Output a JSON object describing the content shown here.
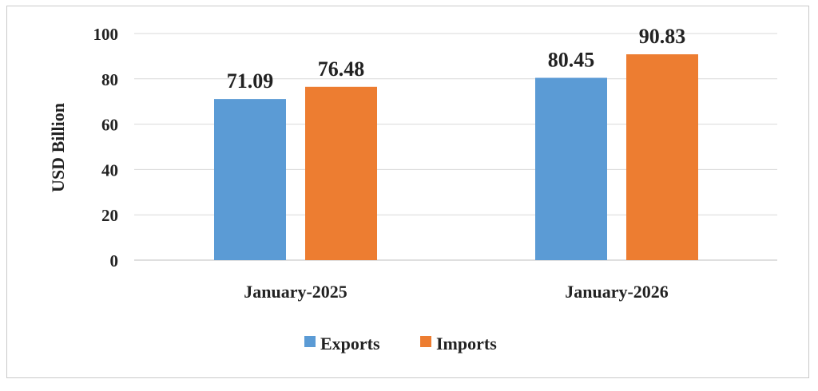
{
  "chart_data": {
    "type": "bar",
    "title": "",
    "xlabel": "",
    "ylabel": "USD Billion",
    "ylim": [
      0,
      100
    ],
    "yticks": [
      0,
      20,
      40,
      60,
      80,
      100
    ],
    "grid": true,
    "legend_position": "bottom",
    "categories": [
      "January-2025",
      "January-2026"
    ],
    "series": [
      {
        "name": "Exports",
        "color": "#5b9bd5",
        "values": [
          71.09,
          80.45
        ],
        "labels": [
          "71.09",
          "80.45"
        ]
      },
      {
        "name": "Imports",
        "color": "#ed7d31",
        "values": [
          76.48,
          90.83
        ],
        "labels": [
          "76.48",
          "90.83"
        ]
      }
    ]
  }
}
